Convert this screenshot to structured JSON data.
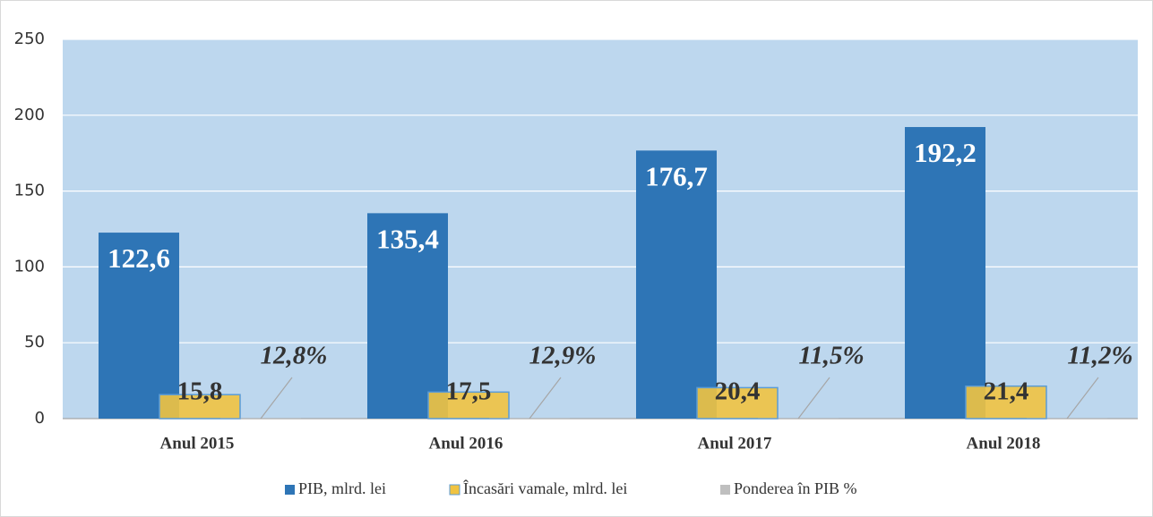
{
  "chart_data": {
    "type": "bar",
    "categories": [
      "Anul 2015",
      "Anul 2016",
      "Anul 2017",
      "Anul 2018"
    ],
    "series": [
      {
        "name": "PIB, mlrd. lei",
        "color": "#2e75b6",
        "values": [
          122.6,
          135.4,
          176.7,
          192.2
        ],
        "value_labels": [
          "122,6",
          "135,4",
          "176,7",
          "192,2"
        ]
      },
      {
        "name": "Încasări vamale, mlrd. lei",
        "color": "#f0c341",
        "values": [
          15.8,
          17.5,
          20.4,
          21.4
        ],
        "value_labels": [
          "15,8",
          "17,5",
          "20,4",
          "21,4"
        ]
      },
      {
        "name": "Ponderea în PIB %",
        "color": "#bfbfbf",
        "values": [
          0.128,
          0.129,
          0.115,
          0.112
        ],
        "value_labels": [
          "12,8%",
          "12,9%",
          "11,5%",
          "11,2%"
        ]
      }
    ],
    "ylim": [
      0,
      250
    ],
    "yticks": [
      0,
      50,
      100,
      150,
      200,
      250
    ],
    "grid": true,
    "legend": "bottom"
  }
}
